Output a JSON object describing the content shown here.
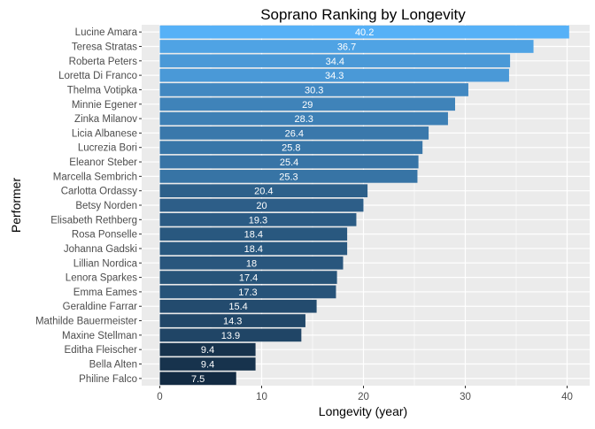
{
  "chart_data": {
    "type": "bar",
    "orientation": "horizontal",
    "title": "Soprano Ranking by Longevity",
    "xlabel": "Longevity (year)",
    "ylabel": "Performer",
    "xlim": [
      0,
      42
    ],
    "x_ticks": [
      0,
      10,
      20,
      30,
      40
    ],
    "grid": true,
    "legend": "none",
    "color_low": "#132B43",
    "color_high": "#56B1F7",
    "panel_background": "#EBEBEB",
    "grid_color": "#FFFFFF",
    "categories": [
      "Lucine Amara",
      "Teresa Stratas",
      "Roberta Peters",
      "Loretta Di Franco",
      "Thelma Votipka",
      "Minnie Egener",
      "Zinka Milanov",
      "Licia Albanese",
      "Lucrezia Bori",
      "Eleanor Steber",
      "Marcella Sembrich",
      "Carlotta Ordassy",
      "Betsy Norden",
      "Elisabeth Rethberg",
      "Rosa Ponselle",
      "Johanna Gadski",
      "Lillian Nordica",
      "Lenora Sparkes",
      "Emma Eames",
      "Geraldine Farrar",
      "Mathilde Bauermeister",
      "Maxine Stellman",
      "Editha Fleischer",
      "Bella Alten",
      "Philine Falco"
    ],
    "values": [
      40.2,
      36.7,
      34.4,
      34.3,
      30.3,
      29,
      28.3,
      26.4,
      25.8,
      25.4,
      25.3,
      20.4,
      20,
      19.3,
      18.4,
      18.4,
      18,
      17.4,
      17.3,
      15.4,
      14.3,
      13.9,
      9.4,
      9.4,
      7.5
    ],
    "value_labels": [
      "40.2",
      "36.7",
      "34.4",
      "34.3",
      "30.3",
      "29",
      "28.3",
      "26.4",
      "25.8",
      "25.4",
      "25.3",
      "20.4",
      "20",
      "19.3",
      "18.4",
      "18.4",
      "18",
      "17.4",
      "17.3",
      "15.4",
      "14.3",
      "13.9",
      "9.4",
      "9.4",
      "7.5"
    ]
  }
}
